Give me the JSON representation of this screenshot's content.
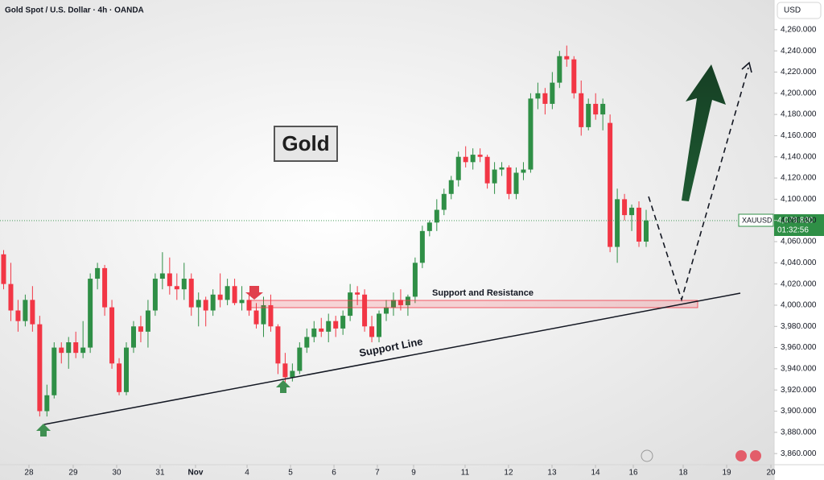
{
  "chart_data": {
    "type": "candlestick",
    "title": "Gold Spot / U.S. Dollar · 4h · OANDA",
    "currency": "USD",
    "symbol": "XAUUSD",
    "countdown": "01:32:56",
    "last_price": {
      "value": 4079.82,
      "label": "4,079.820"
    },
    "annotations": {
      "box_title": "Gold",
      "zone": "Support and Resistance",
      "line": "Support Line"
    },
    "up_color": "#2f8f46",
    "down_color": "#f23645",
    "ylim": [
      3851,
      4288
    ],
    "xlim": [
      -0.5,
      106.5
    ],
    "yticks": [
      {
        "value": 3860,
        "label": "3,860.000"
      },
      {
        "value": 3880,
        "label": "3,880.000"
      },
      {
        "value": 3900,
        "label": "3,900.000"
      },
      {
        "value": 3920,
        "label": "3,920.000"
      },
      {
        "value": 3940,
        "label": "3,940.000"
      },
      {
        "value": 3960,
        "label": "3,960.000"
      },
      {
        "value": 3980,
        "label": "3,980.000"
      },
      {
        "value": 4000,
        "label": "4,000.000"
      },
      {
        "value": 4020,
        "label": "4,020.000"
      },
      {
        "value": 4040,
        "label": "4,040.000"
      },
      {
        "value": 4060,
        "label": "4,060.000"
      },
      {
        "value": 4080,
        "label": "4,080.000"
      },
      {
        "value": 4100,
        "label": "4,100.000"
      },
      {
        "value": 4120,
        "label": "4,120.000"
      },
      {
        "value": 4140,
        "label": "4,140.000"
      },
      {
        "value": 4160,
        "label": "4,160.000"
      },
      {
        "value": 4180,
        "label": "4,180.000"
      },
      {
        "value": 4200,
        "label": "4,200.000"
      },
      {
        "value": 4220,
        "label": "4,220.000"
      },
      {
        "value": 4240,
        "label": "4,240.000"
      },
      {
        "value": 4260,
        "label": "4,260.000"
      }
    ],
    "xticks": [
      {
        "value": 3.51,
        "label": "28"
      },
      {
        "value": 9.64,
        "label": "29"
      },
      {
        "value": 15.66,
        "label": "30"
      },
      {
        "value": 21.68,
        "label": "31"
      },
      {
        "value": 26.58,
        "label": "Nov"
      },
      {
        "value": 33.72,
        "label": "4"
      },
      {
        "value": 39.74,
        "label": "5"
      },
      {
        "value": 45.76,
        "label": "6"
      },
      {
        "value": 51.77,
        "label": "7"
      },
      {
        "value": 56.79,
        "label": "9"
      },
      {
        "value": 63.92,
        "label": "11"
      },
      {
        "value": 69.94,
        "label": "12"
      },
      {
        "value": 75.96,
        "label": "13"
      },
      {
        "value": 81.98,
        "label": "14"
      },
      {
        "value": 87.22,
        "label": "16"
      },
      {
        "value": 94.13,
        "label": "18"
      },
      {
        "value": 100.15,
        "label": "19"
      },
      {
        "value": 106.28,
        "label": "20"
      }
    ],
    "ohlc": [
      [
        4048,
        4052,
        4015,
        4020
      ],
      [
        4020,
        4040,
        3985,
        3995
      ],
      [
        3995,
        4005,
        3975,
        3985
      ],
      [
        3985,
        4010,
        3980,
        4005
      ],
      [
        4005,
        4018,
        3975,
        3982
      ],
      [
        3982,
        3990,
        3895,
        3900
      ],
      [
        3900,
        3925,
        3895,
        3915
      ],
      [
        3915,
        3965,
        3912,
        3960
      ],
      [
        3960,
        3965,
        3945,
        3955
      ],
      [
        3955,
        3970,
        3940,
        3965
      ],
      [
        3965,
        3975,
        3950,
        3955
      ],
      [
        3955,
        3985,
        3950,
        3960
      ],
      [
        3960,
        4030,
        3955,
        4025
      ],
      [
        4025,
        4040,
        4015,
        4035
      ],
      [
        4035,
        4038,
        3990,
        3998
      ],
      [
        3998,
        4005,
        3940,
        3945
      ],
      [
        3945,
        3950,
        3915,
        3918
      ],
      [
        3918,
        3965,
        3915,
        3960
      ],
      [
        3960,
        3985,
        3955,
        3980
      ],
      [
        3980,
        3990,
        3965,
        3975
      ],
      [
        3975,
        4005,
        3960,
        3995
      ],
      [
        3995,
        4030,
        3990,
        4025
      ],
      [
        4025,
        4050,
        4015,
        4030
      ],
      [
        4030,
        4045,
        4010,
        4018
      ],
      [
        4018,
        4030,
        4005,
        4015
      ],
      [
        4015,
        4040,
        4005,
        4025
      ],
      [
        4025,
        4030,
        3990,
        3998
      ],
      [
        3998,
        4012,
        3980,
        4005
      ],
      [
        4005,
        4008,
        3980,
        3995
      ],
      [
        3995,
        4015,
        3990,
        4010
      ],
      [
        4010,
        4030,
        3998,
        4005
      ],
      [
        4005,
        4025,
        4000,
        4018
      ],
      [
        4018,
        4025,
        4000,
        4002
      ],
      [
        4002,
        4018,
        3995,
        4005
      ],
      [
        4005,
        4010,
        3990,
        3995
      ],
      [
        3995,
        4002,
        3978,
        3982
      ],
      [
        3982,
        4008,
        3970,
        4000
      ],
      [
        4000,
        4010,
        3975,
        3980
      ],
      [
        3980,
        3982,
        3935,
        3945
      ],
      [
        3945,
        3955,
        3925,
        3932
      ],
      [
        3932,
        3945,
        3928,
        3938
      ],
      [
        3938,
        3965,
        3935,
        3960
      ],
      [
        3960,
        3978,
        3955,
        3970
      ],
      [
        3970,
        3985,
        3965,
        3978
      ],
      [
        3978,
        3988,
        3970,
        3975
      ],
      [
        3975,
        3992,
        3965,
        3985
      ],
      [
        3985,
        3990,
        3970,
        3978
      ],
      [
        3978,
        3995,
        3972,
        3990
      ],
      [
        3990,
        4020,
        3985,
        4012
      ],
      [
        4012,
        4018,
        4000,
        4010
      ],
      [
        4010,
        4015,
        3975,
        3980
      ],
      [
        3980,
        3990,
        3965,
        3970
      ],
      [
        3970,
        3995,
        3965,
        3992
      ],
      [
        3992,
        4005,
        3985,
        3998
      ],
      [
        3998,
        4012,
        3990,
        4005
      ],
      [
        4005,
        4015,
        3995,
        4000
      ],
      [
        4000,
        4010,
        3990,
        4008
      ],
      [
        4008,
        4045,
        4002,
        4040
      ],
      [
        4040,
        4075,
        4035,
        4070
      ],
      [
        4070,
        4080,
        4065,
        4078
      ],
      [
        4078,
        4100,
        4070,
        4090
      ],
      [
        4090,
        4110,
        4085,
        4105
      ],
      [
        4105,
        4122,
        4100,
        4118
      ],
      [
        4118,
        4145,
        4112,
        4140
      ],
      [
        4140,
        4150,
        4130,
        4135
      ],
      [
        4135,
        4148,
        4128,
        4142
      ],
      [
        4142,
        4148,
        4135,
        4140
      ],
      [
        4140,
        4142,
        4110,
        4115
      ],
      [
        4115,
        4135,
        4105,
        4128
      ],
      [
        4128,
        4135,
        4122,
        4130
      ],
      [
        4130,
        4132,
        4100,
        4105
      ],
      [
        4105,
        4130,
        4100,
        4125
      ],
      [
        4125,
        4135,
        4118,
        4128
      ],
      [
        4128,
        4200,
        4125,
        4195
      ],
      [
        4195,
        4210,
        4185,
        4200
      ],
      [
        4200,
        4205,
        4180,
        4190
      ],
      [
        4190,
        4220,
        4185,
        4210
      ],
      [
        4210,
        4240,
        4205,
        4235
      ],
      [
        4235,
        4245,
        4225,
        4232
      ],
      [
        4232,
        4235,
        4195,
        4200
      ],
      [
        4200,
        4212,
        4160,
        4168
      ],
      [
        4168,
        4195,
        4165,
        4190
      ],
      [
        4190,
        4200,
        4175,
        4180
      ],
      [
        4180,
        4195,
        4165,
        4190
      ],
      [
        4172,
        4180,
        4050,
        4055
      ],
      [
        4055,
        4110,
        4040,
        4100
      ],
      [
        4100,
        4105,
        4080,
        4085
      ],
      [
        4085,
        4095,
        4070,
        4092
      ],
      [
        4092,
        4098,
        4055,
        4060
      ],
      [
        4060,
        4090,
        4055,
        4080
      ]
    ]
  }
}
